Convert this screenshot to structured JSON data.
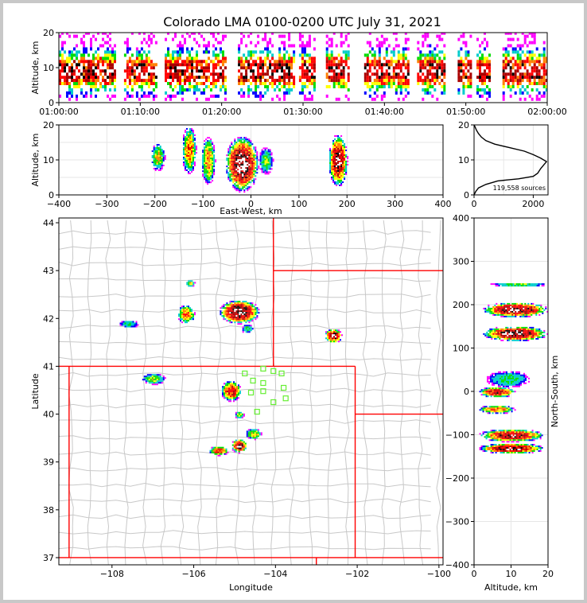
{
  "title": "Colorado LMA 0100-0200 UTC July 31, 2021",
  "chart_data": [
    {
      "panel": "time-altitude",
      "type": "heatmap",
      "ylabel": "Altitude, km",
      "ylim": [
        0,
        20
      ],
      "yticks": [
        "0",
        "10",
        "20"
      ],
      "xticks": [
        "01:00:00",
        "01:10:00",
        "01:20:00",
        "01:30:00",
        "01:40:00",
        "01:50:00",
        "02:00:00"
      ],
      "xlim_min": [
        0,
        60
      ],
      "activity_windows_min": [
        [
          0,
          7
        ],
        [
          8,
          12
        ],
        [
          13,
          20.5
        ],
        [
          22,
          29
        ],
        [
          29.5,
          31.5
        ],
        [
          32.8,
          35.5
        ],
        [
          37.5,
          43
        ],
        [
          44,
          47.5
        ],
        [
          49,
          50.5
        ],
        [
          51.3,
          53
        ],
        [
          54.5,
          60
        ]
      ]
    },
    {
      "panel": "east-west-altitude",
      "type": "heatmap",
      "xlabel": "East-West, km",
      "ylabel": "Altitude, km",
      "xlim": [
        -400,
        400
      ],
      "ylim": [
        0,
        20
      ],
      "xticks": [
        "−400",
        "−300",
        "−200",
        "−100",
        "0",
        "100",
        "200",
        "300",
        "400"
      ],
      "yticks": [
        "0",
        "10",
        "20"
      ],
      "cells": [
        {
          "x": -195,
          "z": 11,
          "w": 30,
          "h": 8,
          "intensity": 0.45
        },
        {
          "x": -130,
          "z": 13,
          "w": 30,
          "h": 14,
          "intensity": 0.6
        },
        {
          "x": -90,
          "z": 10,
          "w": 30,
          "h": 14,
          "intensity": 0.55
        },
        {
          "x": -20,
          "z": 9,
          "w": 70,
          "h": 16,
          "intensity": 1.0
        },
        {
          "x": 30,
          "z": 10,
          "w": 30,
          "h": 8,
          "intensity": 0.35
        },
        {
          "x": 180,
          "z": 10,
          "w": 40,
          "h": 15,
          "intensity": 0.9
        }
      ]
    },
    {
      "panel": "altitude-histogram",
      "type": "line",
      "xlim": [
        0,
        2500
      ],
      "ylim": [
        0,
        20
      ],
      "xticks": [
        "0",
        "2000"
      ],
      "yticks": [
        "0",
        "10",
        "20"
      ],
      "annotation": "119,558 sources",
      "points": [
        [
          0,
          0
        ],
        [
          60,
          1
        ],
        [
          150,
          2
        ],
        [
          400,
          3
        ],
        [
          800,
          4
        ],
        [
          1500,
          4.6
        ],
        [
          2000,
          5.3
        ],
        [
          2150,
          6.2
        ],
        [
          2250,
          7.5
        ],
        [
          2350,
          8.5
        ],
        [
          2450,
          9.5
        ],
        [
          2250,
          10.5
        ],
        [
          2000,
          11.5
        ],
        [
          1700,
          12.5
        ],
        [
          1200,
          13.5
        ],
        [
          700,
          14.5
        ],
        [
          400,
          15.5
        ],
        [
          250,
          16.5
        ],
        [
          150,
          17.5
        ],
        [
          80,
          18.5
        ],
        [
          30,
          19.5
        ],
        [
          0,
          20
        ]
      ]
    },
    {
      "panel": "plan-view",
      "type": "heatmap",
      "xlabel": "Longitude",
      "ylabel": "Latitude",
      "xlim": [
        -109.3,
        -99.9
      ],
      "ylim": [
        36.85,
        44.1
      ],
      "xticks": [
        "−108",
        "−106",
        "−104",
        "−102",
        "−100"
      ],
      "yticks": [
        "37",
        "38",
        "39",
        "40",
        "41",
        "42",
        "43",
        "44"
      ],
      "storms": [
        {
          "lon": -104.9,
          "lat": 42.15,
          "rx": 0.5,
          "ry": 0.25,
          "intensity": 1.0
        },
        {
          "lon": -102.6,
          "lat": 41.65,
          "rx": 0.22,
          "ry": 0.15,
          "intensity": 0.9
        },
        {
          "lon": -106.2,
          "lat": 42.1,
          "rx": 0.22,
          "ry": 0.2,
          "intensity": 0.6
        },
        {
          "lon": -106.1,
          "lat": 42.75,
          "rx": 0.12,
          "ry": 0.08,
          "intensity": 0.4
        },
        {
          "lon": -107.6,
          "lat": 41.9,
          "rx": 0.25,
          "ry": 0.08,
          "intensity": 0.3
        },
        {
          "lon": -107.0,
          "lat": 40.75,
          "rx": 0.3,
          "ry": 0.12,
          "intensity": 0.4
        },
        {
          "lon": -105.1,
          "lat": 40.5,
          "rx": 0.25,
          "ry": 0.22,
          "intensity": 0.75
        },
        {
          "lon": -105.4,
          "lat": 39.25,
          "rx": 0.25,
          "ry": 0.1,
          "intensity": 0.7
        },
        {
          "lon": -104.9,
          "lat": 39.35,
          "rx": 0.2,
          "ry": 0.15,
          "intensity": 0.9
        },
        {
          "lon": -104.55,
          "lat": 39.6,
          "rx": 0.2,
          "ry": 0.12,
          "intensity": 0.5
        },
        {
          "lon": -104.9,
          "lat": 40.0,
          "rx": 0.12,
          "ry": 0.08,
          "intensity": 0.4
        },
        {
          "lon": -104.7,
          "lat": 41.8,
          "rx": 0.15,
          "ry": 0.1,
          "intensity": 0.3
        }
      ],
      "stations": [
        [
          -104.75,
          40.85
        ],
        [
          -104.3,
          40.95
        ],
        [
          -104.05,
          40.9
        ],
        [
          -103.85,
          40.85
        ],
        [
          -104.55,
          40.7
        ],
        [
          -104.3,
          40.65
        ],
        [
          -103.8,
          40.55
        ],
        [
          -104.6,
          40.45
        ],
        [
          -104.3,
          40.48
        ],
        [
          -103.75,
          40.33
        ],
        [
          -104.05,
          40.25
        ],
        [
          -104.45,
          40.05
        ]
      ]
    },
    {
      "panel": "altitude-north-south",
      "type": "heatmap",
      "xlabel": "Altitude, km",
      "ylabel": "North-South, km",
      "xlim": [
        0,
        20
      ],
      "ylim": [
        -400,
        400
      ],
      "xticks": [
        "0",
        "10",
        "20"
      ],
      "yticks": [
        "−400",
        "−300",
        "−200",
        "−100",
        "0",
        "100",
        "200",
        "300",
        "400"
      ],
      "cells": [
        {
          "y": 248,
          "z": 12,
          "w": 16,
          "h": 10,
          "intensity": 0.35
        },
        {
          "y": 190,
          "z": 11,
          "w": 18,
          "h": 35,
          "intensity": 0.95
        },
        {
          "y": 135,
          "z": 11,
          "w": 18,
          "h": 35,
          "intensity": 0.95
        },
        {
          "y": 30,
          "z": 9,
          "w": 12,
          "h": 40,
          "intensity": 0.3
        },
        {
          "y": 0,
          "z": 6,
          "w": 10,
          "h": 25,
          "intensity": 0.8
        },
        {
          "y": -40,
          "z": 6,
          "w": 10,
          "h": 20,
          "intensity": 0.6
        },
        {
          "y": -100,
          "z": 10,
          "w": 18,
          "h": 30,
          "intensity": 0.85
        },
        {
          "y": -130,
          "z": 10,
          "w": 18,
          "h": 25,
          "intensity": 0.9
        }
      ]
    }
  ]
}
